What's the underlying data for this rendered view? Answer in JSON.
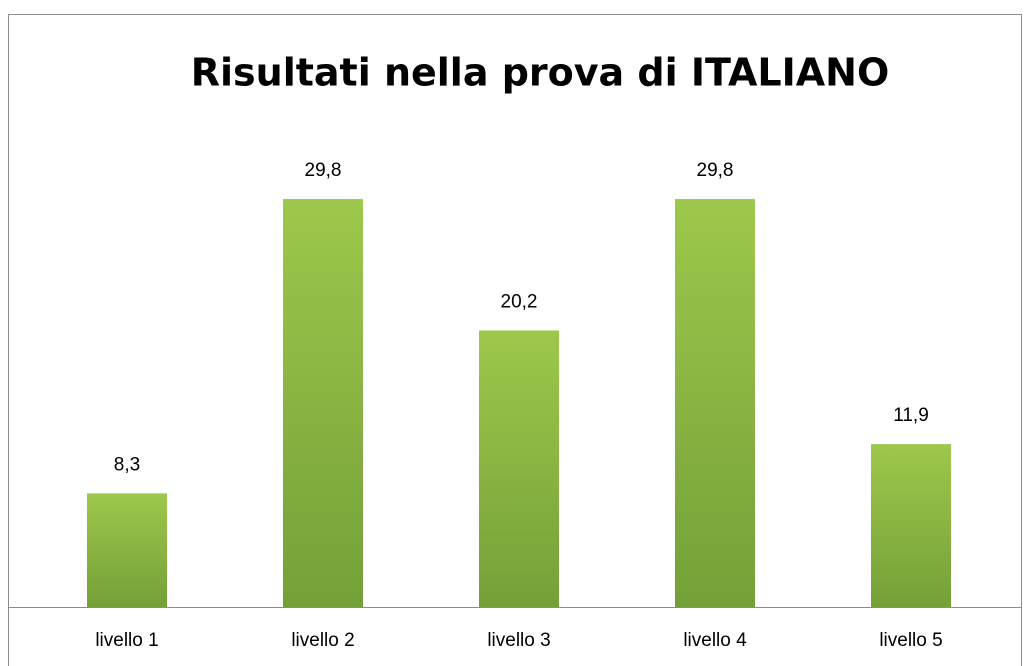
{
  "chart_data": {
    "type": "bar",
    "title": "Risultati nella prova di ITALIANO",
    "categories": [
      "livello 1",
      "livello 2",
      "livello 3",
      "livello 4",
      "livello 5"
    ],
    "values": [
      8.3,
      29.8,
      20.2,
      29.8,
      11.9
    ],
    "value_labels": [
      "8,3",
      "29,8",
      "20,2",
      "29,8",
      "11,9"
    ],
    "color": "#8ab544"
  }
}
